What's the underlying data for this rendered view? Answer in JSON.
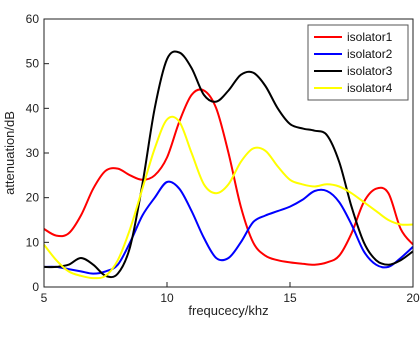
{
  "chart_data": {
    "type": "line",
    "title": "",
    "xlabel": "frequcecy/khz",
    "ylabel": "attenuation/dB",
    "xlim": [
      5,
      20
    ],
    "ylim": [
      0,
      60
    ],
    "xticks": [
      5,
      10,
      15,
      20
    ],
    "yticks": [
      0,
      10,
      20,
      30,
      40,
      50,
      60
    ],
    "grid": false,
    "legend_position": "top-right",
    "series": [
      {
        "name": "isolator1",
        "color": "#ff0000",
        "x": [
          5,
          5.5,
          6,
          6.5,
          7,
          7.5,
          8,
          8.5,
          9,
          9.5,
          10,
          10.5,
          11,
          11.5,
          12,
          12.5,
          13,
          13.5,
          14,
          14.5,
          15,
          15.5,
          16,
          16.5,
          17,
          17.5,
          18,
          18.5,
          19,
          19.5,
          20
        ],
        "y": [
          13,
          11.5,
          12,
          16,
          22,
          26,
          26.5,
          25,
          24,
          25,
          29,
          37,
          43,
          44,
          40,
          30,
          18,
          10,
          7,
          6,
          5.5,
          5.2,
          5,
          5.5,
          7,
          12,
          19,
          22,
          21,
          13,
          9.5
        ]
      },
      {
        "name": "isolator2",
        "color": "#0000ff",
        "x": [
          5,
          5.5,
          6,
          6.5,
          7,
          7.5,
          8,
          8.5,
          9,
          9.5,
          10,
          10.5,
          11,
          11.5,
          12,
          12.5,
          13,
          13.5,
          14,
          14.5,
          15,
          15.5,
          16,
          16.5,
          17,
          17.5,
          18,
          18.5,
          19,
          19.5,
          20
        ],
        "y": [
          4.5,
          4.5,
          4,
          3.5,
          3,
          3.5,
          5,
          10,
          16,
          20,
          23.5,
          22,
          17,
          11,
          6.5,
          6.5,
          10,
          14.5,
          16,
          17,
          18,
          19.5,
          21.5,
          21.5,
          19,
          14,
          8,
          5,
          4.5,
          6.5,
          9
        ]
      },
      {
        "name": "isolator3",
        "color": "#000000",
        "x": [
          5,
          5.5,
          6,
          6.5,
          7,
          7.5,
          8,
          8.5,
          9,
          9.5,
          10,
          10.5,
          11,
          11.5,
          12,
          12.5,
          13,
          13.5,
          14,
          14.5,
          15,
          15.5,
          16,
          16.5,
          17,
          17.5,
          18,
          18.5,
          19,
          19.5,
          20
        ],
        "y": [
          4.5,
          4.5,
          5,
          6.5,
          5,
          2.5,
          3,
          9,
          23,
          40,
          51,
          52.5,
          49,
          43,
          41.5,
          44,
          47.5,
          48,
          45,
          40,
          36.5,
          35.5,
          35,
          34,
          28,
          18,
          10,
          6,
          5,
          6,
          8
        ]
      },
      {
        "name": "isolator4",
        "color": "#ffff00",
        "x": [
          5,
          5.5,
          6,
          6.5,
          7,
          7.5,
          8,
          8.5,
          9,
          9.5,
          10,
          10.5,
          11,
          11.5,
          12,
          12.5,
          13,
          13.5,
          14,
          14.5,
          15,
          15.5,
          16,
          16.5,
          17,
          17.5,
          18,
          18.5,
          19,
          19.5,
          20
        ],
        "y": [
          9.5,
          6,
          3.5,
          2.5,
          2,
          2.5,
          6,
          13,
          22,
          31,
          37.5,
          37,
          30,
          23,
          21,
          23,
          28,
          31,
          30.5,
          27,
          24,
          23,
          22.5,
          23,
          22.5,
          21,
          19,
          17,
          15,
          14,
          14
        ]
      }
    ]
  }
}
